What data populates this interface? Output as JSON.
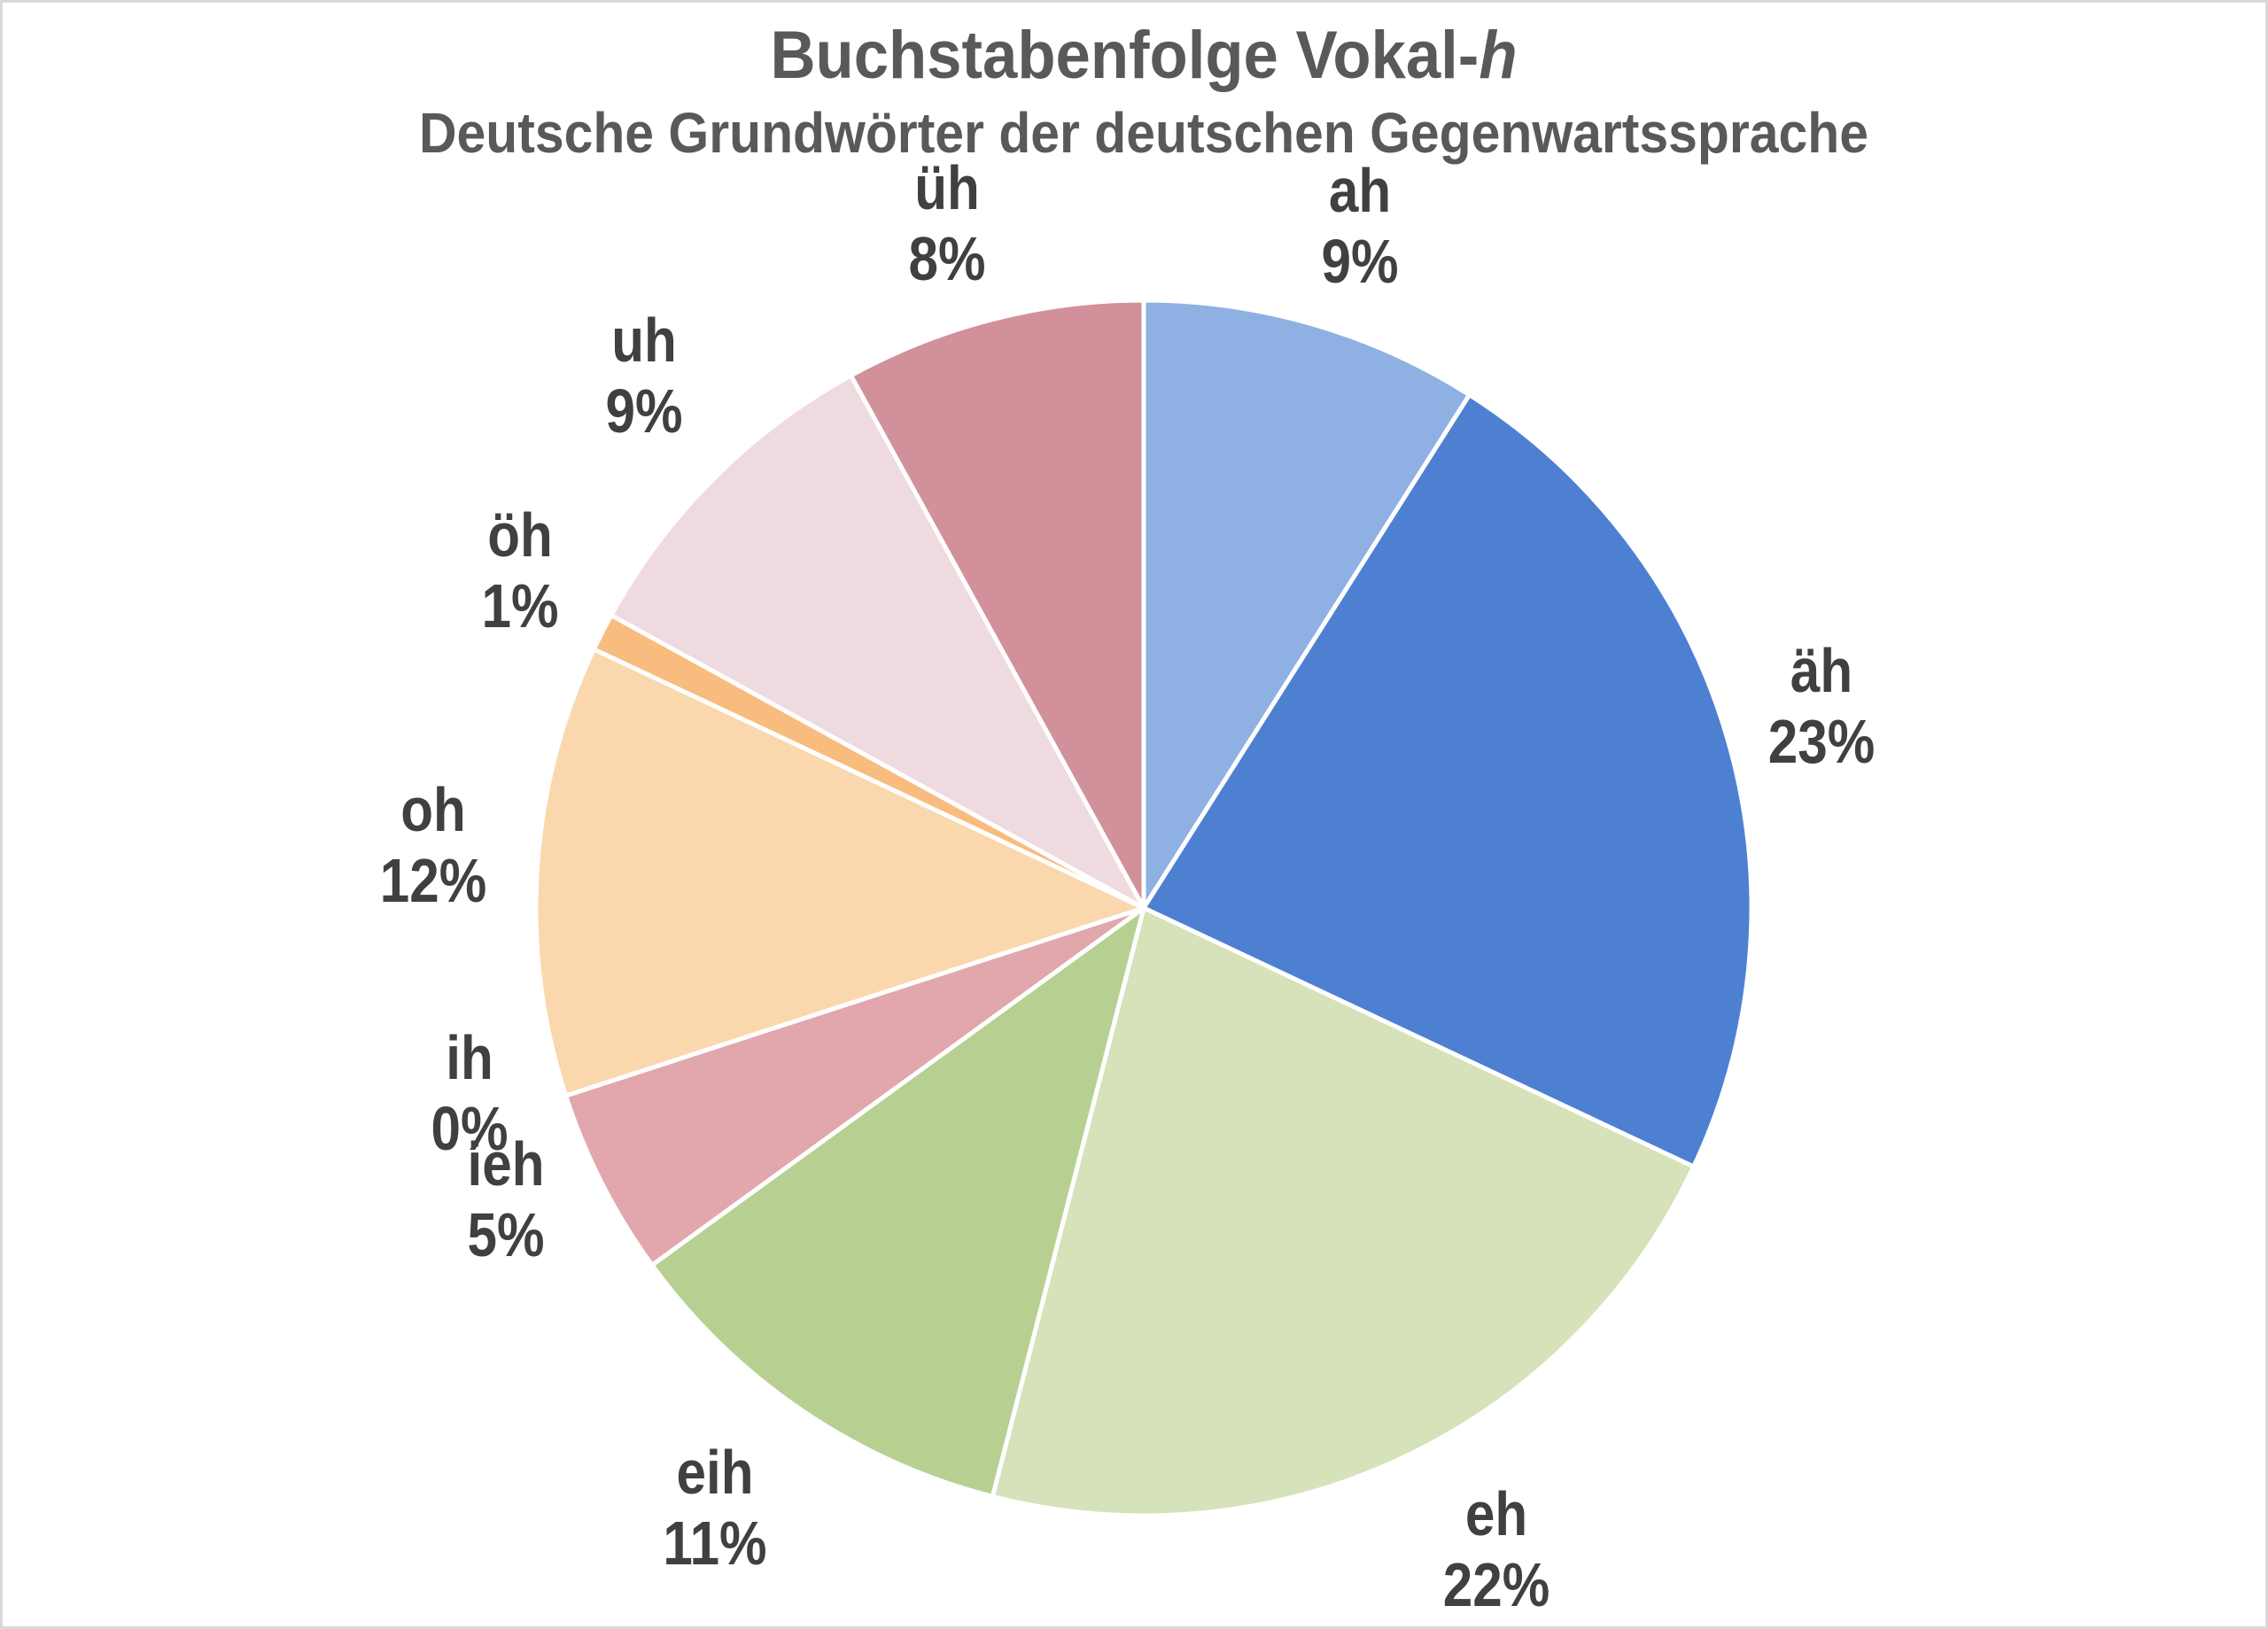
{
  "chart_data": {
    "type": "pie",
    "title_prefix": "Buchstabenfolge Vokal-",
    "title_emphasis": "h",
    "subtitle": "Deutsche Grundwörter der deutschen Gegenwartssprache",
    "start_angle_deg": 0,
    "direction": "clockwise",
    "legend_position": "none",
    "labels": "outside, category name above percent value",
    "background_color": "#ffffff",
    "separator_color": "#ffffff",
    "title_color": "#595959",
    "label_text_color": "#404040",
    "slices": [
      {
        "label": "ah",
        "percent": 9,
        "percent_label": "9%",
        "color": "#8FB0E2"
      },
      {
        "label": "äh",
        "percent": 23,
        "percent_label": "23%",
        "color": "#4E80D2"
      },
      {
        "label": "eh",
        "percent": 22,
        "percent_label": "22%",
        "color": "#D6E2B9"
      },
      {
        "label": "eih",
        "percent": 11,
        "percent_label": "11%",
        "color": "#B7D092"
      },
      {
        "label": "ieh",
        "percent": 5,
        "percent_label": "5%",
        "color": "#E1A7AC"
      },
      {
        "label": "ih",
        "percent": 0,
        "percent_label": "0%",
        "color": null
      },
      {
        "label": "oh",
        "percent": 12,
        "percent_label": "12%",
        "color": "#FBD7AD"
      },
      {
        "label": "öh",
        "percent": 1,
        "percent_label": "1%",
        "color": "#F8BC7E"
      },
      {
        "label": "uh",
        "percent": 9,
        "percent_label": "9%",
        "color": "#EFDADF"
      },
      {
        "label": "üh",
        "percent": 8,
        "percent_label": "8%",
        "color": "#D2909A"
      }
    ]
  }
}
